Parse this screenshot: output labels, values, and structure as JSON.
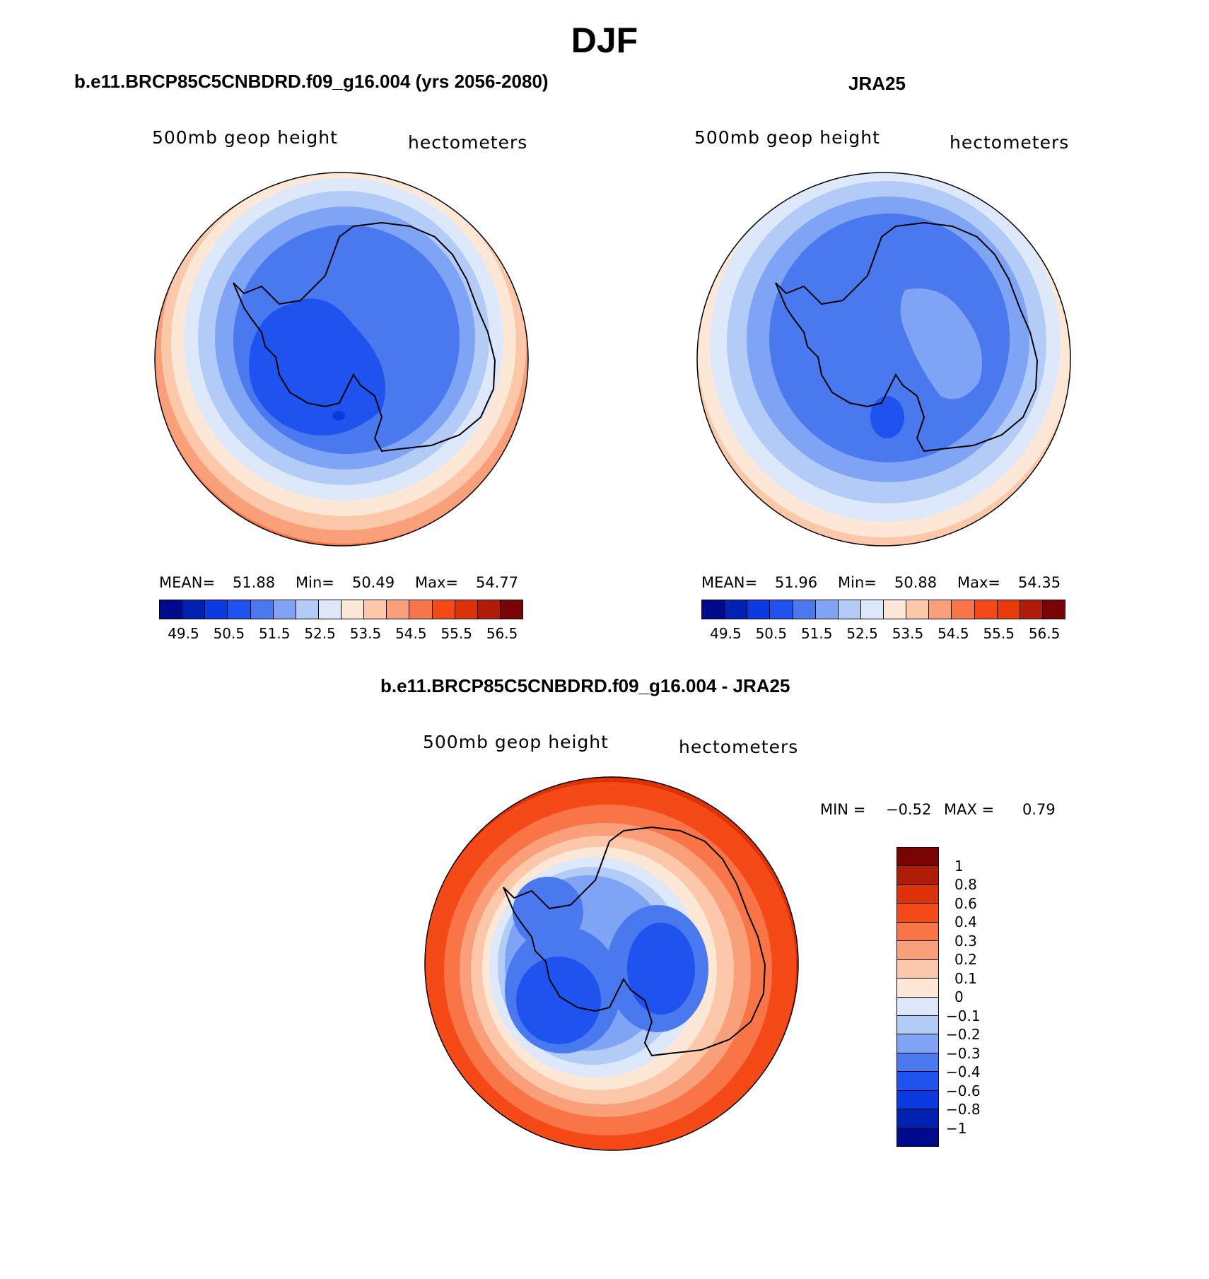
{
  "figure": {
    "season": "DJF",
    "left_title": "b.e11.BRCP85C5CNBDRD.f09_g16.004 (yrs 2056-2080)",
    "right_title": "JRA25",
    "diff_title": "b.e11.BRCP85C5CNBDRD.f09_g16.004 - JRA25"
  },
  "panels": {
    "model": {
      "variable": "500mb geop height",
      "units": "hectometers",
      "mean_label": "MEAN=",
      "mean": "51.88",
      "min_label": "Min=",
      "min": "50.49",
      "max_label": "Max=",
      "max": "54.77"
    },
    "obs": {
      "variable": "500mb geop height",
      "units": "hectometers",
      "mean_label": "MEAN=",
      "mean": "51.96",
      "min_label": "Min=",
      "min": "50.88",
      "max_label": "Max=",
      "max": "54.35"
    },
    "diff": {
      "variable": "500mb geop height",
      "units": "hectometers",
      "min_label": "MIN =",
      "min": "−0.52",
      "max_label": "MAX =",
      "max": "0.79"
    }
  },
  "colorbars": {
    "abs_ticks": [
      "49.5",
      "50.5",
      "51.5",
      "52.5",
      "53.5",
      "54.5",
      "55.5",
      "56.5"
    ],
    "abs_colors_model": [
      "#000a8c",
      "#0022b4",
      "#0a3ae0",
      "#1f53f0",
      "#4a78ee",
      "#7fa3f5",
      "#b2cbf7",
      "#dde8fa",
      "#fde7d6",
      "#fdc8aa",
      "#f9a07a",
      "#f97447",
      "#f54a18",
      "#dd3208",
      "#b01c08",
      "#7a0404"
    ],
    "abs_colors_obs": [
      "#000a8c",
      "#0022b4",
      "#0a3ae0",
      "#1f53f0",
      "#4a78ee",
      "#7fa3f5",
      "#b2cbf7",
      "#dde8fa",
      "#fde7d6",
      "#fdc8aa",
      "#f9a07a",
      "#f97447",
      "#f54a18",
      "#e63a0a",
      "#b01c08",
      "#7a0404"
    ],
    "diff_ticks": [
      "1",
      "0.8",
      "0.6",
      "0.4",
      "0.3",
      "0.2",
      "0.1",
      "0",
      "−0.1",
      "−0.2",
      "−0.3",
      "−0.4",
      "−0.6",
      "−0.8",
      "−1"
    ],
    "diff_colors": [
      "#7a0404",
      "#b01c08",
      "#dd3208",
      "#f54a18",
      "#f97447",
      "#f9a07a",
      "#fdc8aa",
      "#fde7d6",
      "#dde8fa",
      "#b2cbf7",
      "#7fa3f5",
      "#4a78ee",
      "#1f53f0",
      "#0a3ae0",
      "#0022b4",
      "#000a8c"
    ]
  }
}
